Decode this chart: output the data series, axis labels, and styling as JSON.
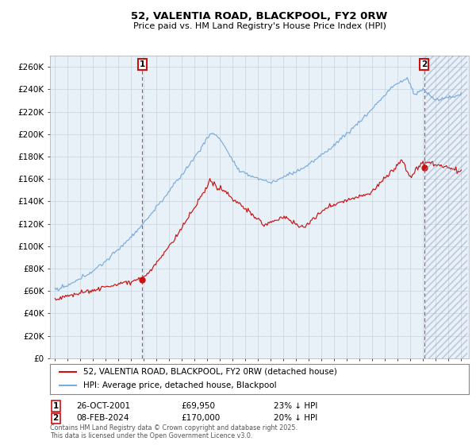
{
  "title": "52, VALENTIA ROAD, BLACKPOOL, FY2 0RW",
  "subtitle": "Price paid vs. HM Land Registry's House Price Index (HPI)",
  "ylim": [
    0,
    270000
  ],
  "yticks": [
    0,
    20000,
    40000,
    60000,
    80000,
    100000,
    120000,
    140000,
    160000,
    180000,
    200000,
    220000,
    240000,
    260000
  ],
  "hpi_color": "#7aaddc",
  "price_color": "#cc1111",
  "chart_bg": "#e8f0f8",
  "annotation1": {
    "label": "1",
    "date": "26-OCT-2001",
    "price": "£69,950",
    "pct": "23% ↓ HPI"
  },
  "annotation2": {
    "label": "2",
    "date": "08-FEB-2024",
    "price": "£170,000",
    "pct": "20% ↓ HPI"
  },
  "legend_label1": "52, VALENTIA ROAD, BLACKPOOL, FY2 0RW (detached house)",
  "legend_label2": "HPI: Average price, detached house, Blackpool",
  "footer": "Contains HM Land Registry data © Crown copyright and database right 2025.\nThis data is licensed under the Open Government Licence v3.0.",
  "background_color": "#ffffff",
  "grid_color": "#c8d4e0",
  "year_start": 1995,
  "year_end": 2027,
  "marker1_year": 2001.83,
  "marker2_year": 2024.1,
  "sale1_price": 69950,
  "sale2_price": 170000
}
